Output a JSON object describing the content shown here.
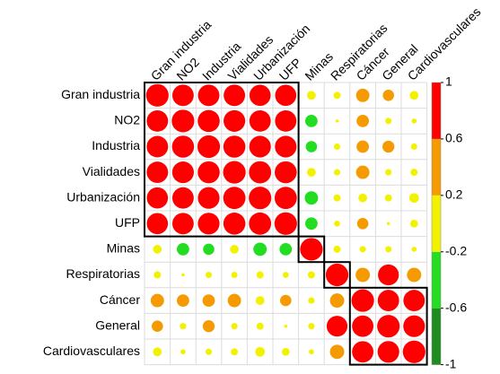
{
  "chart_data": {
    "type": "corrplot",
    "variables": [
      "Gran industria",
      "NO2",
      "Industria",
      "Vialidades",
      "Urbanización",
      "UFP",
      "Minas",
      "Respiratorias",
      "Cáncer",
      "General",
      "Cardiovasculares"
    ],
    "values": [
      [
        1,
        0.9,
        0.9,
        0.9,
        0.88,
        0.88,
        0.15,
        0.1,
        0.35,
        0.25,
        0.15
      ],
      [
        0.9,
        1,
        0.95,
        0.92,
        0.9,
        0.9,
        -0.3,
        0.02,
        0.3,
        0.08,
        0.05
      ],
      [
        0.9,
        0.95,
        1,
        0.95,
        0.92,
        0.92,
        -0.25,
        0.08,
        0.3,
        0.28,
        0.08
      ],
      [
        0.9,
        0.92,
        0.95,
        1,
        0.97,
        0.95,
        0.15,
        0.08,
        0.35,
        0.08,
        0.1
      ],
      [
        0.88,
        0.9,
        0.92,
        0.97,
        1,
        0.97,
        -0.35,
        0.1,
        0.15,
        0.1,
        0.18
      ],
      [
        0.88,
        0.9,
        0.92,
        0.95,
        0.97,
        1,
        -0.3,
        0.07,
        0.25,
        0.02,
        0.12
      ],
      [
        0.15,
        -0.3,
        -0.25,
        0.15,
        -0.35,
        -0.3,
        1,
        0.1,
        0.08,
        0.08,
        0.05
      ],
      [
        0.1,
        0.02,
        0.08,
        0.08,
        0.1,
        0.07,
        0.1,
        1,
        0.4,
        0.85,
        0.4
      ],
      [
        0.35,
        0.3,
        0.3,
        0.35,
        0.15,
        0.25,
        0.08,
        0.4,
        1,
        0.9,
        0.9
      ],
      [
        0.25,
        0.08,
        0.28,
        0.08,
        0.1,
        0.02,
        0.08,
        0.85,
        0.9,
        1,
        0.92
      ],
      [
        0.15,
        0.05,
        0.08,
        0.1,
        0.18,
        0.12,
        0.05,
        0.4,
        0.9,
        0.92,
        1
      ]
    ],
    "colorbar": {
      "lim": [
        -1,
        1
      ],
      "ticks": [
        -1,
        -0.6,
        -0.2,
        0.2,
        0.6,
        1
      ],
      "colors": [
        "#1e8c1e",
        "#22dd22",
        "#f2f200",
        "#f59a00",
        "#ff0000"
      ]
    }
  }
}
